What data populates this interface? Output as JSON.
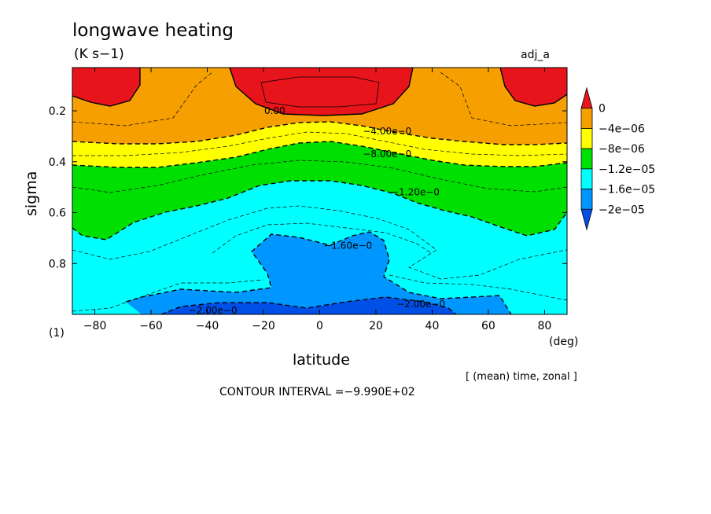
{
  "chart_data": {
    "type": "contour",
    "title": "longwave heating",
    "units": "(K s−1)",
    "dataset": "adj_a",
    "ylabel": "sigma",
    "xlabel": "latitude",
    "x_unit": "(deg)",
    "panel_index": "(1)",
    "averaging_note": "[ (mean) time, zonal ]",
    "contour_interval": "CONTOUR INTERVAL =−9.990E+02",
    "xlim": [
      -88,
      88
    ],
    "ylim": [
      1.0,
      0.03
    ],
    "x_ticks": [
      -80,
      -60,
      -40,
      -20,
      0,
      20,
      40,
      60,
      80
    ],
    "x_tick_labels": [
      "−80",
      "−60",
      "−40",
      "−20",
      "0",
      "20",
      "40",
      "60",
      "80"
    ],
    "y_ticks": [
      0.2,
      0.4,
      0.6,
      0.8
    ],
    "y_tick_labels": [
      "0.2",
      "0.4",
      "0.6",
      "0.8"
    ],
    "colorbar": {
      "levels": [
        0,
        -4e-06,
        -8e-06,
        -1.2e-05,
        -1.6e-05,
        -2e-05
      ],
      "labels": [
        "0",
        "−4e−06",
        "−8e−06",
        "−1.2e−05",
        "−1.6e−05",
        "−2e−05"
      ],
      "colors": [
        "#e8141c",
        "#f5a000",
        "#ffff00",
        "#00e000",
        "#00ffff",
        "#0096ff",
        "#0050e8"
      ]
    },
    "contour_labels": [
      {
        "text": "0.00",
        "lat": -16,
        "sigma": 0.2
      },
      {
        "text": "−4.00e−0",
        "lat": 24,
        "sigma": 0.28
      },
      {
        "text": "−8.00e−0",
        "lat": 24,
        "sigma": 0.37
      },
      {
        "text": "−1.20e−0",
        "lat": 34,
        "sigma": 0.52
      },
      {
        "text": "−1.60e−0",
        "lat": 10,
        "sigma": 0.73
      },
      {
        "text": "−2.00e−0",
        "lat": 36,
        "sigma": 0.96
      },
      {
        "text": "−2.00e−0",
        "lat": -38,
        "sigma": 0.985
      }
    ],
    "regions_by_level": [
      {
        "value_range": "> 0",
        "areas": [
          "north polar upper",
          "south polar upper",
          "tropical top (lat -18 to 28, sigma < 0.2)"
        ]
      },
      {
        "value_range": "0 to -4e-06",
        "areas": [
          "upper band sigma ~0.1-0.3"
        ]
      },
      {
        "value_range": "-4e-06 to -8e-06",
        "areas": [
          "band sigma ~0.28-0.38"
        ]
      },
      {
        "value_range": "-8e-06 to -1.2e-05",
        "areas": [
          "band sigma ~0.35-0.7, thickest at poles"
        ]
      },
      {
        "value_range": "-1.2e-05 to -1.6e-05",
        "areas": [
          "lower troposphere sigma ~0.5-1.0"
        ]
      },
      {
        "value_range": "-1.6e-05 to -2e-05",
        "areas": [
          "tropical lobe lat -25 to 25, sigma 0.72-1.0",
          "near-surface band lat -70 to 65"
        ]
      },
      {
        "value_range": "< -2e-05",
        "areas": [
          "surface layer lat -45 to 45, sigma > 0.97"
        ]
      }
    ]
  }
}
